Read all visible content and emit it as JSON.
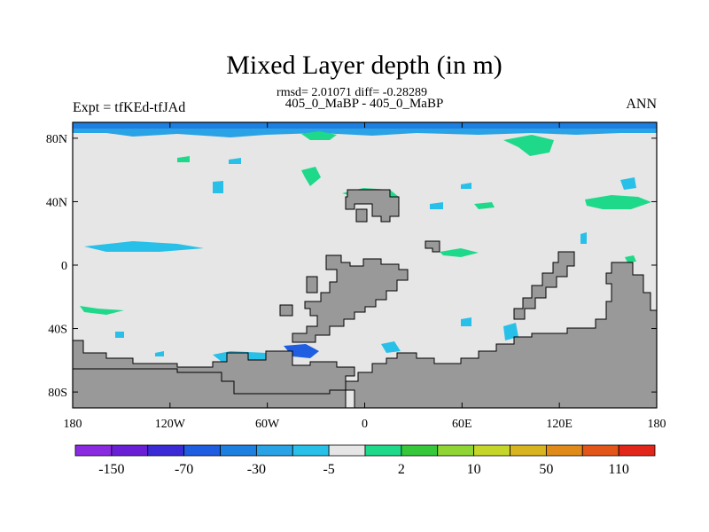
{
  "chart_data": {
    "type": "heatmap",
    "title": "Mixed Layer depth (in m)",
    "subtitle_line1": "rmsd= 2.01071 diff= -0.28289",
    "subtitle_line2": "405_0_MaBP - 405_0_MaBP",
    "left_label": "Expt = tfKEd-tfJAd",
    "right_label": "ANN",
    "x_ticks": [
      "180",
      "120W",
      "60W",
      "0",
      "60E",
      "120E",
      "180"
    ],
    "x_tick_values": [
      -180,
      -120,
      -60,
      0,
      60,
      120,
      180
    ],
    "y_ticks": [
      "80N",
      "40N",
      "0",
      "40S",
      "80S"
    ],
    "y_tick_values": [
      80,
      40,
      0,
      -40,
      -80
    ],
    "xlim": [
      -180,
      180
    ],
    "ylim": [
      -90,
      90
    ],
    "colorbar": {
      "labels": [
        "-150",
        "-70",
        "-30",
        "-5",
        "2",
        "10",
        "50",
        "110"
      ],
      "colors": [
        "#8a2be2",
        "#6a1fd6",
        "#3a2bd6",
        "#1f5ee0",
        "#1d7fe0",
        "#2aa2e6",
        "#28c0e8",
        "#e6e6e6",
        "#1fd98a",
        "#36c83a",
        "#8fd634",
        "#c6d52a",
        "#d8b420",
        "#e08a1a",
        "#e2561a",
        "#e2271a"
      ]
    },
    "colors": {
      "background": "#e6e6e6",
      "land": "#999999",
      "arctic_band": "#1d7fe0",
      "arctic_band_light": "#2aa2e6",
      "green": "#1fd98a",
      "cyan": "#28c0e8",
      "blue": "#1f5ee0"
    }
  }
}
